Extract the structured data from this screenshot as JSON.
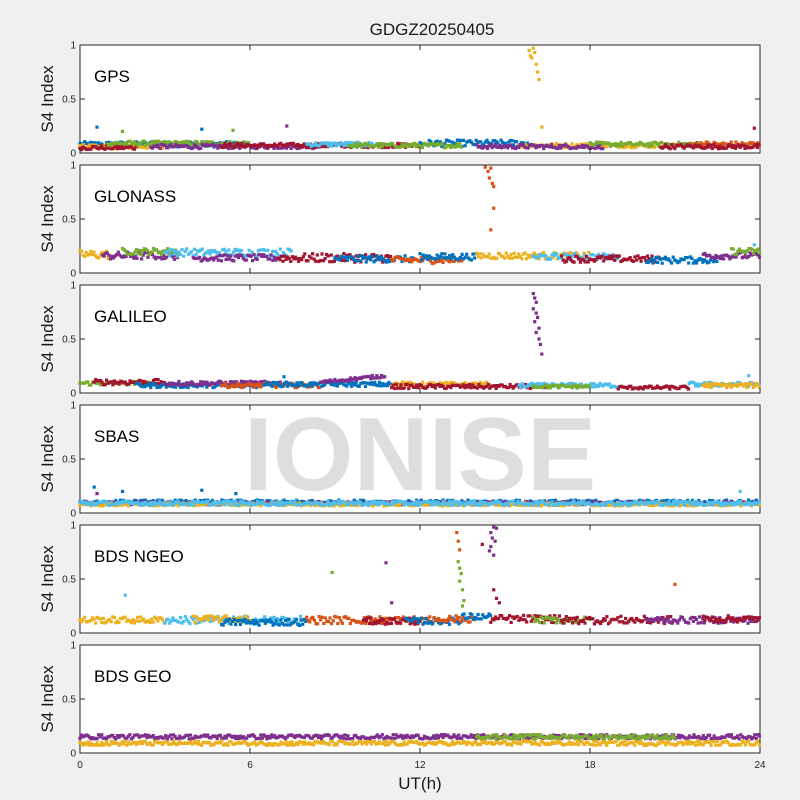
{
  "figure": {
    "title": "GDGZ20250405",
    "xlabel": "UT(h)",
    "watermark": "IONISE",
    "background": "#f0f0f0"
  },
  "chart_data": {
    "type": "scatter",
    "title": "GDGZ20250405",
    "xlabel": "UT(h)",
    "xlim": [
      0,
      24
    ],
    "xticks": [
      0,
      6,
      12,
      18,
      24
    ],
    "xtick_labels": [
      "0",
      "6",
      "12",
      "18",
      "24"
    ],
    "grid": false,
    "colors": {
      "blue": "#0072bd",
      "orange": "#d95319",
      "yellow": "#edb120",
      "purple": "#7e2f8e",
      "green": "#77ac30",
      "cyan": "#4dbeee",
      "red": "#a2142f"
    },
    "panels": [
      {
        "name": "GPS",
        "ylabel": "S4 Index",
        "ylim": [
          0,
          1
        ],
        "yticks": [
          0,
          0.5,
          1
        ],
        "ytick_labels": [
          "0",
          "0.5",
          "1"
        ],
        "segments": [
          {
            "color": "blue",
            "x0": 0,
            "x1": 5.5,
            "base": 0.08,
            "noise": 0.025
          },
          {
            "color": "yellow",
            "x0": 0,
            "x1": 3.0,
            "base": 0.06,
            "noise": 0.02
          },
          {
            "color": "red",
            "x0": 0,
            "x1": 2.0,
            "base": 0.05,
            "noise": 0.02
          },
          {
            "color": "green",
            "x0": 1.0,
            "x1": 6.0,
            "base": 0.09,
            "noise": 0.02
          },
          {
            "color": "purple",
            "x0": 2.5,
            "x1": 8.5,
            "base": 0.06,
            "noise": 0.02
          },
          {
            "color": "red",
            "x0": 5.0,
            "x1": 12.0,
            "base": 0.07,
            "noise": 0.02
          },
          {
            "color": "cyan",
            "x0": 8.0,
            "x1": 10.5,
            "base": 0.08,
            "noise": 0.02
          },
          {
            "color": "blue",
            "x0": 12.0,
            "x1": 15.8,
            "base": 0.09,
            "noise": 0.03
          },
          {
            "color": "green",
            "x0": 9.5,
            "x1": 13.5,
            "base": 0.07,
            "noise": 0.02
          },
          {
            "color": "yellow",
            "x0": 15.5,
            "x1": 21.0,
            "base": 0.07,
            "noise": 0.02
          },
          {
            "color": "purple",
            "x0": 14.0,
            "x1": 18.5,
            "base": 0.06,
            "noise": 0.02
          },
          {
            "color": "green",
            "x0": 18.0,
            "x1": 22.0,
            "base": 0.08,
            "noise": 0.02
          },
          {
            "color": "orange",
            "x0": 21.5,
            "x1": 24.0,
            "base": 0.08,
            "noise": 0.025
          },
          {
            "color": "red",
            "x0": 20.5,
            "x1": 24.0,
            "base": 0.06,
            "noise": 0.02
          }
        ],
        "points": [
          {
            "color": "yellow",
            "x": 15.85,
            "y": 0.95
          },
          {
            "color": "yellow",
            "x": 15.9,
            "y": 0.9
          },
          {
            "color": "yellow",
            "x": 15.95,
            "y": 0.88
          },
          {
            "color": "yellow",
            "x": 16.0,
            "y": 0.97
          },
          {
            "color": "yellow",
            "x": 16.05,
            "y": 0.93
          },
          {
            "color": "yellow",
            "x": 16.1,
            "y": 0.82
          },
          {
            "color": "yellow",
            "x": 16.15,
            "y": 0.75
          },
          {
            "color": "yellow",
            "x": 16.2,
            "y": 0.68
          },
          {
            "color": "yellow",
            "x": 16.3,
            "y": 0.24
          },
          {
            "color": "blue",
            "x": 0.6,
            "y": 0.24
          },
          {
            "color": "green",
            "x": 1.5,
            "y": 0.2
          },
          {
            "color": "blue",
            "x": 4.3,
            "y": 0.22
          },
          {
            "color": "green",
            "x": 5.4,
            "y": 0.21
          },
          {
            "color": "purple",
            "x": 7.3,
            "y": 0.25
          },
          {
            "color": "red",
            "x": 23.8,
            "y": 0.23
          }
        ]
      },
      {
        "name": "GLONASS",
        "ylabel": "S4 Index",
        "ylim": [
          0,
          1
        ],
        "yticks": [
          0,
          0.5,
          1
        ],
        "ytick_labels": [
          "0",
          "0.5",
          "1"
        ],
        "segments": [
          {
            "color": "yellow",
            "x0": 0,
            "x1": 1.0,
            "base": 0.17,
            "noise": 0.04
          },
          {
            "color": "purple",
            "x0": 0.8,
            "x1": 3.5,
            "base": 0.16,
            "noise": 0.035
          },
          {
            "color": "green",
            "x0": 1.5,
            "x1": 3.5,
            "base": 0.2,
            "noise": 0.03
          },
          {
            "color": "cyan",
            "x0": 3.0,
            "x1": 7.5,
            "base": 0.19,
            "noise": 0.035
          },
          {
            "color": "purple",
            "x0": 4.0,
            "x1": 7.0,
            "base": 0.14,
            "noise": 0.03
          },
          {
            "color": "red",
            "x0": 7.0,
            "x1": 11.0,
            "base": 0.14,
            "noise": 0.04
          },
          {
            "color": "blue",
            "x0": 9.0,
            "x1": 11.8,
            "base": 0.13,
            "noise": 0.03
          },
          {
            "color": "orange",
            "x0": 11.0,
            "x1": 13.5,
            "base": 0.12,
            "noise": 0.03
          },
          {
            "color": "blue",
            "x0": 12.0,
            "x1": 14.0,
            "base": 0.15,
            "noise": 0.03
          },
          {
            "color": "yellow",
            "x0": 14.0,
            "x1": 18.0,
            "base": 0.16,
            "noise": 0.03
          },
          {
            "color": "cyan",
            "x0": 16.0,
            "x1": 19.0,
            "base": 0.15,
            "noise": 0.03
          },
          {
            "color": "red",
            "x0": 17.0,
            "x1": 20.5,
            "base": 0.13,
            "noise": 0.03
          },
          {
            "color": "blue",
            "x0": 20.0,
            "x1": 22.5,
            "base": 0.12,
            "noise": 0.03
          },
          {
            "color": "purple",
            "x0": 22.0,
            "x1": 24.0,
            "base": 0.16,
            "noise": 0.03
          },
          {
            "color": "green",
            "x0": 23.0,
            "x1": 24.0,
            "base": 0.2,
            "noise": 0.03
          }
        ],
        "points": [
          {
            "color": "orange",
            "x": 14.3,
            "y": 0.98
          },
          {
            "color": "orange",
            "x": 14.4,
            "y": 0.94
          },
          {
            "color": "orange",
            "x": 14.5,
            "y": 0.97
          },
          {
            "color": "orange",
            "x": 14.45,
            "y": 0.88
          },
          {
            "color": "orange",
            "x": 14.55,
            "y": 0.83
          },
          {
            "color": "orange",
            "x": 14.6,
            "y": 0.8
          },
          {
            "color": "orange",
            "x": 14.6,
            "y": 0.6
          },
          {
            "color": "orange",
            "x": 14.5,
            "y": 0.4
          },
          {
            "color": "cyan",
            "x": 23.8,
            "y": 0.26
          }
        ]
      },
      {
        "name": "GALILEO",
        "ylabel": "S4 Index",
        "ylim": [
          0,
          1
        ],
        "yticks": [
          0,
          0.5,
          1
        ],
        "ytick_labels": [
          "0",
          "0.5",
          "1"
        ],
        "segments": [
          {
            "color": "green",
            "x0": 0,
            "x1": 2.5,
            "base": 0.09,
            "noise": 0.02
          },
          {
            "color": "red",
            "x0": 0.5,
            "x1": 3.0,
            "base": 0.1,
            "noise": 0.025
          },
          {
            "color": "blue",
            "x0": 2.0,
            "x1": 6.5,
            "base": 0.07,
            "noise": 0.02
          },
          {
            "color": "purple",
            "x0": 3.0,
            "x1": 7.5,
            "base": 0.09,
            "noise": 0.02
          },
          {
            "color": "orange",
            "x0": 5.0,
            "x1": 8.5,
            "base": 0.07,
            "noise": 0.02
          },
          {
            "color": "blue",
            "x0": 6.5,
            "x1": 11.0,
            "base": 0.08,
            "noise": 0.02
          },
          {
            "color": "purple",
            "x0": 8.5,
            "x1": 10.8,
            "base": 0.1,
            "noise": 0.015,
            "trend": 0.06
          },
          {
            "color": "yellow",
            "x0": 11.0,
            "x1": 14.5,
            "base": 0.08,
            "noise": 0.02
          },
          {
            "color": "red",
            "x0": 11.0,
            "x1": 16.5,
            "base": 0.06,
            "noise": 0.02
          },
          {
            "color": "cyan",
            "x0": 15.5,
            "x1": 19.0,
            "base": 0.07,
            "noise": 0.02
          },
          {
            "color": "green",
            "x0": 16.0,
            "x1": 18.0,
            "base": 0.06,
            "noise": 0.015
          },
          {
            "color": "red",
            "x0": 19.0,
            "x1": 21.5,
            "base": 0.05,
            "noise": 0.015
          },
          {
            "color": "cyan",
            "x0": 21.5,
            "x1": 24.0,
            "base": 0.08,
            "noise": 0.02
          },
          {
            "color": "yellow",
            "x0": 22.0,
            "x1": 24.0,
            "base": 0.07,
            "noise": 0.02
          }
        ],
        "points": [
          {
            "color": "purple",
            "x": 16.0,
            "y": 0.92
          },
          {
            "color": "purple",
            "x": 16.05,
            "y": 0.88
          },
          {
            "color": "purple",
            "x": 16.1,
            "y": 0.84
          },
          {
            "color": "purple",
            "x": 16.0,
            "y": 0.78
          },
          {
            "color": "purple",
            "x": 16.1,
            "y": 0.74
          },
          {
            "color": "purple",
            "x": 16.15,
            "y": 0.7
          },
          {
            "color": "purple",
            "x": 16.05,
            "y": 0.66
          },
          {
            "color": "purple",
            "x": 16.2,
            "y": 0.6
          },
          {
            "color": "purple",
            "x": 16.1,
            "y": 0.56
          },
          {
            "color": "purple",
            "x": 16.2,
            "y": 0.5
          },
          {
            "color": "purple",
            "x": 16.25,
            "y": 0.45
          },
          {
            "color": "purple",
            "x": 16.3,
            "y": 0.36
          },
          {
            "color": "blue",
            "x": 7.2,
            "y": 0.15
          },
          {
            "color": "cyan",
            "x": 23.6,
            "y": 0.16
          }
        ]
      },
      {
        "name": "SBAS",
        "ylabel": "S4 Index",
        "ylim": [
          0,
          1
        ],
        "yticks": [
          0,
          0.5,
          1
        ],
        "ytick_labels": [
          "0",
          "0.5",
          "1"
        ],
        "segments": [
          {
            "color": "blue",
            "x0": 0,
            "x1": 24.0,
            "base": 0.1,
            "noise": 0.02
          },
          {
            "color": "purple",
            "x0": 0,
            "x1": 24.0,
            "base": 0.09,
            "noise": 0.015
          },
          {
            "color": "yellow",
            "x0": 0,
            "x1": 24.0,
            "base": 0.08,
            "noise": 0.015
          },
          {
            "color": "cyan",
            "x0": 0,
            "x1": 24.0,
            "base": 0.09,
            "noise": 0.02
          }
        ],
        "points": [
          {
            "color": "blue",
            "x": 0.5,
            "y": 0.24
          },
          {
            "color": "purple",
            "x": 0.6,
            "y": 0.18
          },
          {
            "color": "blue",
            "x": 1.5,
            "y": 0.2
          },
          {
            "color": "blue",
            "x": 4.3,
            "y": 0.21
          },
          {
            "color": "blue",
            "x": 5.5,
            "y": 0.18
          },
          {
            "color": "cyan",
            "x": 23.3,
            "y": 0.2
          }
        ]
      },
      {
        "name": "BDS NGEO",
        "ylabel": "S4 Index",
        "ylim": [
          0,
          1
        ],
        "yticks": [
          0,
          0.5,
          1
        ],
        "ytick_labels": [
          "0",
          "0.5",
          "1"
        ],
        "segments": [
          {
            "color": "yellow",
            "x0": 0,
            "x1": 3.0,
            "base": 0.12,
            "noise": 0.03
          },
          {
            "color": "cyan",
            "x0": 3.0,
            "x1": 8.0,
            "base": 0.12,
            "noise": 0.035
          },
          {
            "color": "yellow",
            "x0": 4.0,
            "x1": 6.0,
            "base": 0.13,
            "noise": 0.03
          },
          {
            "color": "blue",
            "x0": 5.0,
            "x1": 8.0,
            "base": 0.1,
            "noise": 0.03
          },
          {
            "color": "orange",
            "x0": 8.0,
            "x1": 12.5,
            "base": 0.12,
            "noise": 0.035
          },
          {
            "color": "red",
            "x0": 10.0,
            "x1": 12.0,
            "base": 0.11,
            "noise": 0.03
          },
          {
            "color": "blue",
            "x0": 11.5,
            "x1": 13.5,
            "base": 0.11,
            "noise": 0.03
          },
          {
            "color": "orange",
            "x0": 12.5,
            "x1": 14.0,
            "base": 0.13,
            "noise": 0.03
          },
          {
            "color": "blue",
            "x0": 13.5,
            "x1": 14.5,
            "base": 0.15,
            "noise": 0.03
          },
          {
            "color": "red",
            "x0": 14.5,
            "x1": 17.0,
            "base": 0.13,
            "noise": 0.035
          },
          {
            "color": "green",
            "x0": 16.0,
            "x1": 18.0,
            "base": 0.12,
            "noise": 0.03
          },
          {
            "color": "red",
            "x0": 17.0,
            "x1": 21.0,
            "base": 0.12,
            "noise": 0.035
          },
          {
            "color": "purple",
            "x0": 20.0,
            "x1": 24.0,
            "base": 0.12,
            "noise": 0.03
          },
          {
            "color": "red",
            "x0": 22.0,
            "x1": 24.0,
            "base": 0.13,
            "noise": 0.03
          }
        ],
        "points": [
          {
            "color": "orange",
            "x": 13.3,
            "y": 0.93
          },
          {
            "color": "orange",
            "x": 13.35,
            "y": 0.85
          },
          {
            "color": "orange",
            "x": 13.4,
            "y": 0.77
          },
          {
            "color": "green",
            "x": 13.35,
            "y": 0.66
          },
          {
            "color": "green",
            "x": 13.4,
            "y": 0.6
          },
          {
            "color": "green",
            "x": 13.45,
            "y": 0.55
          },
          {
            "color": "green",
            "x": 13.4,
            "y": 0.48
          },
          {
            "color": "green",
            "x": 13.5,
            "y": 0.4
          },
          {
            "color": "green",
            "x": 13.55,
            "y": 0.3
          },
          {
            "color": "green",
            "x": 13.5,
            "y": 0.25
          },
          {
            "color": "purple",
            "x": 14.6,
            "y": 0.98
          },
          {
            "color": "purple",
            "x": 14.7,
            "y": 0.97
          },
          {
            "color": "purple",
            "x": 14.5,
            "y": 0.93
          },
          {
            "color": "purple",
            "x": 14.55,
            "y": 0.88
          },
          {
            "color": "purple",
            "x": 14.65,
            "y": 0.85
          },
          {
            "color": "purple",
            "x": 14.5,
            "y": 0.8
          },
          {
            "color": "purple",
            "x": 14.45,
            "y": 0.76
          },
          {
            "color": "purple",
            "x": 14.6,
            "y": 0.72
          },
          {
            "color": "red",
            "x": 14.2,
            "y": 0.82
          },
          {
            "color": "red",
            "x": 14.6,
            "y": 0.4
          },
          {
            "color": "red",
            "x": 14.7,
            "y": 0.32
          },
          {
            "color": "red",
            "x": 14.8,
            "y": 0.28
          },
          {
            "color": "purple",
            "x": 10.8,
            "y": 0.65
          },
          {
            "color": "green",
            "x": 8.9,
            "y": 0.56
          },
          {
            "color": "orange",
            "x": 21.0,
            "y": 0.45
          },
          {
            "color": "purple",
            "x": 11.0,
            "y": 0.28
          },
          {
            "color": "cyan",
            "x": 1.6,
            "y": 0.35
          }
        ]
      },
      {
        "name": "BDS GEO",
        "ylabel": "S4 Index",
        "ylim": [
          0,
          1
        ],
        "yticks": [
          0,
          0.5,
          1
        ],
        "ytick_labels": [
          "0",
          "0.5",
          "1"
        ],
        "segments": [
          {
            "color": "purple",
            "x0": 0,
            "x1": 24.0,
            "base": 0.15,
            "noise": 0.02
          },
          {
            "color": "yellow",
            "x0": 0,
            "x1": 24.0,
            "base": 0.09,
            "noise": 0.02
          },
          {
            "color": "green",
            "x0": 14.0,
            "x1": 21.0,
            "base": 0.15,
            "noise": 0.02
          }
        ],
        "points": []
      }
    ]
  }
}
